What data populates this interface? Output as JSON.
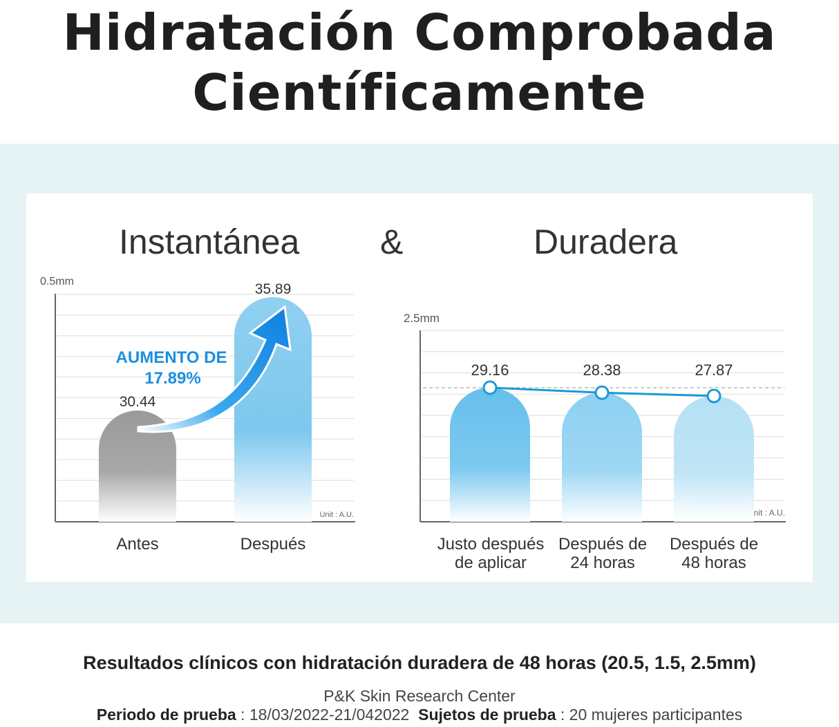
{
  "title": {
    "line1": "Hidratación Comprobada",
    "line2": "Científicamente"
  },
  "headings": {
    "left": "Instantánea",
    "amp": "&",
    "right": "Duradera"
  },
  "colors": {
    "blue_dark": "#2aa0e0",
    "blue_light": "#a9dcf3",
    "gray": "#9a9a9a",
    "line": "#1b9ad6",
    "annotation": "#1c8fe0",
    "band": "#e6f3f4"
  },
  "chart_data": [
    {
      "type": "bar",
      "title": "Instantánea",
      "ylabel": "0.5mm",
      "unit": "Unit : A.U.",
      "categories": [
        "Antes",
        "Después"
      ],
      "values": [
        30.44,
        35.89
      ],
      "labels": [
        "30.44",
        "35.89"
      ],
      "annotation": {
        "line1": "AUMENTO DE",
        "line2": "17.89%"
      },
      "ylim": [
        0,
        40
      ]
    },
    {
      "type": "bar",
      "title": "Duradera",
      "ylabel": "2.5mm",
      "unit": "Unit : A.U.",
      "categories": [
        {
          "line1": "Justo después",
          "line2": "de aplicar"
        },
        {
          "line1": "Después de",
          "line2": "24 horas"
        },
        {
          "line1": "Después de",
          "line2": "48 horas"
        }
      ],
      "values": [
        29.16,
        28.38,
        27.87
      ],
      "labels": [
        "29.16",
        "28.38",
        "27.87"
      ],
      "overlay_line": true,
      "ylim": [
        0,
        38
      ]
    }
  ],
  "footer": {
    "main": "Resultados clínicos con hidratación duradera de 48 horas (20.5, 1.5, 2.5mm)",
    "center": "P&K Skin Research Center",
    "period_label": "Periodo de prueba",
    "period_value": " : 18/03/2022-21/042022",
    "subjects_label": "Sujetos de prueba",
    "subjects_value": " : 20 mujeres participantes"
  }
}
